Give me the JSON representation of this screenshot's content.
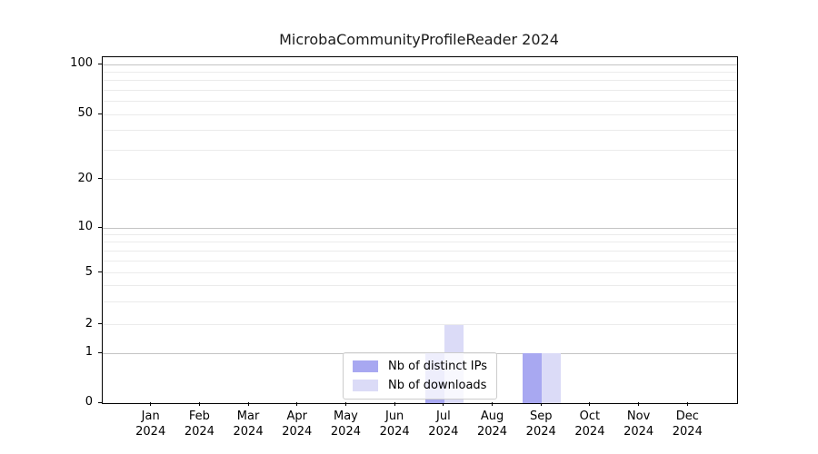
{
  "title": "MicrobaCommunityProfileReader 2024",
  "chart_data": {
    "type": "bar",
    "title": "MicrobaCommunityProfileReader 2024",
    "categories": [
      "Jan",
      "Feb",
      "Mar",
      "Apr",
      "May",
      "Jun",
      "Jul",
      "Aug",
      "Sep",
      "Oct",
      "Nov",
      "Dec"
    ],
    "category_year": "2024",
    "series": [
      {
        "name": "Nb of distinct IPs",
        "color": "#a8a8f1",
        "values": [
          0,
          0,
          0,
          0,
          0,
          0,
          1,
          0,
          1,
          0,
          0,
          0
        ]
      },
      {
        "name": "Nb of downloads",
        "color": "#dbdbf7",
        "values": [
          0,
          0,
          0,
          0,
          0,
          0,
          2,
          0,
          1,
          0,
          0,
          0
        ]
      }
    ],
    "xlabel": "",
    "ylabel": "",
    "y_ticks": [
      0,
      1,
      2,
      5,
      10,
      20,
      50,
      100
    ],
    "y_major_gridlines": [
      1,
      10,
      100
    ],
    "y_minor_gridlines": [
      2,
      3,
      4,
      5,
      6,
      7,
      8,
      9,
      20,
      30,
      40,
      50,
      60,
      70,
      80,
      90
    ],
    "ylim": [
      0,
      110
    ],
    "scale": "symlog",
    "grid": "horizontal-only",
    "legend_position": "lower center"
  },
  "colors": {
    "series1": "#a8a8f1",
    "series2": "#dbdbf7",
    "grid_major": "#c4c4c4",
    "grid_minor": "#ebebeb",
    "spine": "#000000",
    "legend_border": "#cccccc"
  }
}
